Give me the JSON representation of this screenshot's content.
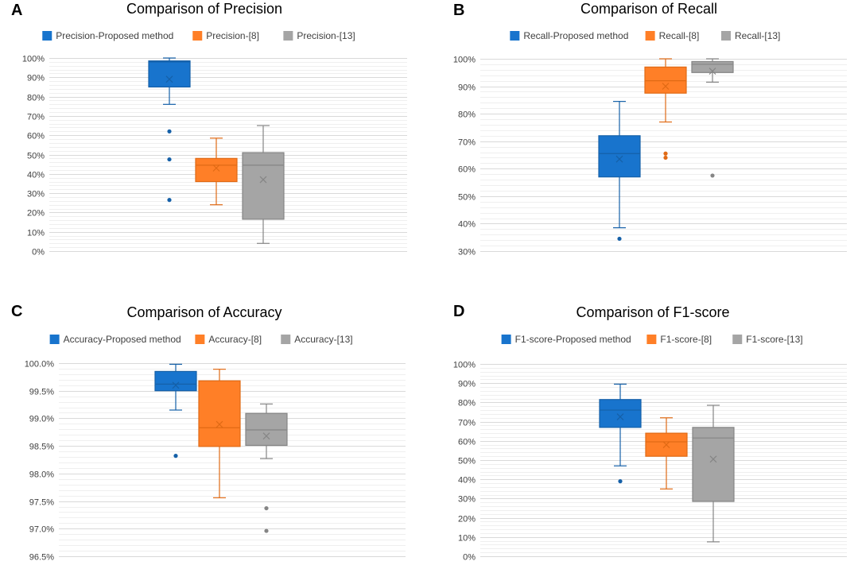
{
  "figure": {
    "colors": {
      "proposed": "#1874CD",
      "proposed_dark": "#1560A8",
      "ref8": "#FF7F27",
      "ref8_dark": "#E06A15",
      "ref13": "#A5A5A5",
      "ref13_dark": "#858585"
    }
  },
  "chart_data": [
    {
      "id": "precision",
      "panel_label": "A",
      "type": "box",
      "title": "Comparison of Precision",
      "xlabel": "",
      "ylabel": "",
      "ylim": [
        0,
        100
      ],
      "major_step": 10,
      "minor_step": 2,
      "tick_format": "percent0",
      "legend_position": "top",
      "series": [
        {
          "name": "Precision-Proposed method",
          "color_key": "proposed",
          "whisker_low": 76,
          "q1": 85,
          "median": 98,
          "q3": 98.5,
          "whisker_high": 100,
          "mean": 89,
          "outliers": [
            62,
            47.5,
            26.5
          ]
        },
        {
          "name": "Precision-[8]",
          "color_key": "ref8",
          "whisker_low": 24,
          "q1": 36,
          "median": 44.5,
          "q3": 48,
          "whisker_high": 58.5,
          "mean": 43,
          "outliers": []
        },
        {
          "name": "Precision-[13]",
          "color_key": "ref13",
          "whisker_low": 4,
          "q1": 16.5,
          "median": 44.5,
          "q3": 51,
          "whisker_high": 65,
          "mean": 37,
          "outliers": []
        }
      ]
    },
    {
      "id": "recall",
      "panel_label": "B",
      "type": "box",
      "title": "Comparison of Recall",
      "xlabel": "",
      "ylabel": "",
      "ylim": [
        30,
        100
      ],
      "major_step": 10,
      "minor_step": 2,
      "tick_format": "percent0",
      "legend_position": "top",
      "series": [
        {
          "name": "Recall-Proposed method",
          "color_key": "proposed",
          "whisker_low": 38.5,
          "q1": 57,
          "median": 65.5,
          "q3": 72,
          "whisker_high": 84.5,
          "mean": 63.5,
          "outliers": [
            34.5
          ]
        },
        {
          "name": "Recall-[8]",
          "color_key": "ref8",
          "whisker_low": 77,
          "q1": 87.5,
          "median": 92,
          "q3": 97,
          "whisker_high": 100,
          "mean": 90,
          "outliers": [
            65.5,
            64
          ]
        },
        {
          "name": "Recall-[13]",
          "color_key": "ref13",
          "whisker_low": 91.5,
          "q1": 95,
          "median": 98,
          "q3": 99,
          "whisker_high": 100,
          "mean": 95.5,
          "outliers": [
            57.5
          ]
        }
      ]
    },
    {
      "id": "accuracy",
      "panel_label": "C",
      "type": "box",
      "title": "Comparison of Accuracy",
      "xlabel": "",
      "ylabel": "",
      "ylim": [
        96.5,
        100
      ],
      "major_step": 0.5,
      "minor_step": 0.1,
      "tick_format": "percent1",
      "legend_position": "top",
      "series": [
        {
          "name": "Accuracy-Proposed method",
          "color_key": "proposed",
          "whisker_low": 99.15,
          "q1": 99.5,
          "median": 99.62,
          "q3": 99.85,
          "whisker_high": 99.98,
          "mean": 99.6,
          "outliers": [
            98.32
          ]
        },
        {
          "name": "Accuracy-[8]",
          "color_key": "ref8",
          "whisker_low": 97.56,
          "q1": 98.49,
          "median": 98.83,
          "q3": 99.68,
          "whisker_high": 99.89,
          "mean": 98.89,
          "outliers": []
        },
        {
          "name": "Accuracy-[13]",
          "color_key": "ref13",
          "whisker_low": 98.27,
          "q1": 98.51,
          "median": 98.79,
          "q3": 99.09,
          "whisker_high": 99.26,
          "mean": 98.68,
          "outliers": [
            97.37,
            96.96
          ]
        }
      ]
    },
    {
      "id": "f1score",
      "panel_label": "D",
      "type": "box",
      "title": "Comparison of F1-score",
      "xlabel": "",
      "ylabel": "",
      "ylim": [
        0,
        100
      ],
      "major_step": 10,
      "minor_step": 2,
      "tick_format": "percent0",
      "legend_position": "top",
      "series": [
        {
          "name": "F1-score-Proposed method",
          "color_key": "proposed",
          "whisker_low": 47,
          "q1": 67,
          "median": 76,
          "q3": 81.5,
          "whisker_high": 89.5,
          "mean": 72.5,
          "outliers": [
            39
          ]
        },
        {
          "name": "F1-score-[8]",
          "color_key": "ref8",
          "whisker_low": 35,
          "q1": 52,
          "median": 59.5,
          "q3": 64,
          "whisker_high": 72,
          "mean": 58,
          "outliers": []
        },
        {
          "name": "F1-score-[13]",
          "color_key": "ref13",
          "whisker_low": 7.5,
          "q1": 28.5,
          "median": 61.5,
          "q3": 67,
          "whisker_high": 78.5,
          "mean": 50.5,
          "outliers": []
        }
      ]
    }
  ]
}
